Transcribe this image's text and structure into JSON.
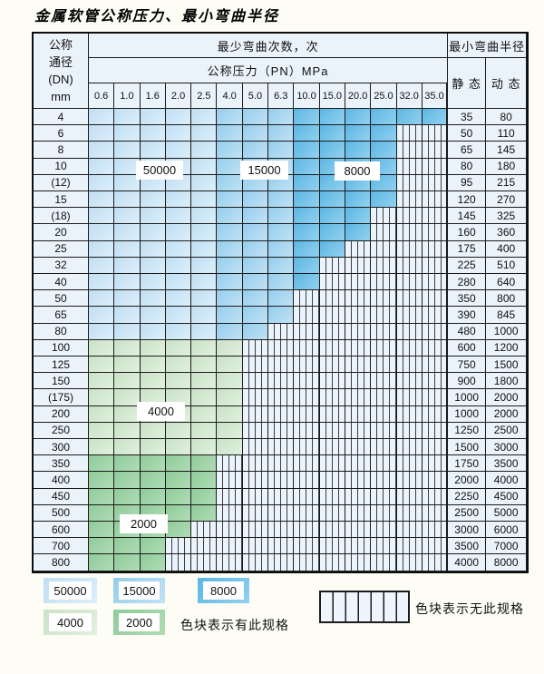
{
  "title": "金属软管公称压力、最小弯曲半径",
  "header": {
    "dn_lines": [
      "公称",
      "通径",
      "(DN)",
      "mm"
    ],
    "cycles_title": "最少弯曲次数，次",
    "pressure_title": "公称压力（PN）MPa",
    "pressures": [
      "0.6",
      "1.0",
      "1.6",
      "2.0",
      "2.5",
      "4.0",
      "5.0",
      "6.3",
      "10.0",
      "15.0",
      "20.0",
      "25.0",
      "32.0",
      "35.0"
    ],
    "radius_title": "最小弯曲半径",
    "static_label": "静 态",
    "dynamic_label": "动 态"
  },
  "region_labels": {
    "l50000": "50000",
    "l15000": "15000",
    "l8000": "8000",
    "l4000": "4000",
    "l2000": "2000"
  },
  "legend": {
    "items": [
      {
        "value": "50000",
        "key": "50000"
      },
      {
        "value": "15000",
        "key": "15000"
      },
      {
        "value": "8000",
        "key": "8000"
      },
      {
        "value": "4000",
        "key": "4000"
      },
      {
        "value": "2000",
        "key": "2000"
      }
    ],
    "has_spec_text": "色块表示有此规格",
    "no_spec_text": "色块表示无此规格"
  },
  "colors": {
    "cycle_fill": {
      "50000": [
        "#bfdff2",
        "#ddeefa"
      ],
      "15000": [
        "#95cdec",
        "#c0e2f5"
      ],
      "8000": [
        "#5cb6e2",
        "#92d1f0"
      ],
      "4000": [
        "#c9e2c6",
        "#e1f0de"
      ],
      "2000": [
        "#8fcb99",
        "#b0dcb6"
      ]
    },
    "hatch_bg": "#ebf3fb",
    "hatch_line": "#3a3f44",
    "label_cell_bg": "#eaf2fa",
    "grid_line": "#1b1b1b"
  },
  "rows": [
    {
      "dn": "4",
      "cells": [
        50000,
        50000,
        50000,
        50000,
        50000,
        15000,
        15000,
        15000,
        8000,
        8000,
        8000,
        8000,
        8000,
        8000
      ],
      "static": "35",
      "dynamic": "80"
    },
    {
      "dn": "6",
      "cells": [
        50000,
        50000,
        50000,
        50000,
        50000,
        15000,
        15000,
        15000,
        8000,
        8000,
        8000,
        8000,
        null,
        null
      ],
      "static": "50",
      "dynamic": "110"
    },
    {
      "dn": "8",
      "cells": [
        50000,
        50000,
        50000,
        50000,
        50000,
        15000,
        15000,
        15000,
        8000,
        8000,
        8000,
        8000,
        null,
        null
      ],
      "static": "65",
      "dynamic": "145"
    },
    {
      "dn": "10",
      "cells": [
        50000,
        50000,
        50000,
        50000,
        50000,
        15000,
        15000,
        15000,
        8000,
        8000,
        8000,
        8000,
        null,
        null
      ],
      "static": "80",
      "dynamic": "180"
    },
    {
      "dn": "(12)",
      "cells": [
        50000,
        50000,
        50000,
        50000,
        50000,
        15000,
        15000,
        15000,
        8000,
        8000,
        8000,
        8000,
        null,
        null
      ],
      "static": "95",
      "dynamic": "215"
    },
    {
      "dn": "15",
      "cells": [
        50000,
        50000,
        50000,
        50000,
        50000,
        15000,
        15000,
        15000,
        8000,
        8000,
        8000,
        8000,
        null,
        null
      ],
      "static": "120",
      "dynamic": "270"
    },
    {
      "dn": "(18)",
      "cells": [
        50000,
        50000,
        50000,
        50000,
        50000,
        15000,
        15000,
        15000,
        8000,
        8000,
        8000,
        null,
        null,
        null
      ],
      "static": "145",
      "dynamic": "325"
    },
    {
      "dn": "20",
      "cells": [
        50000,
        50000,
        50000,
        50000,
        50000,
        15000,
        15000,
        15000,
        8000,
        8000,
        8000,
        null,
        null,
        null
      ],
      "static": "160",
      "dynamic": "360"
    },
    {
      "dn": "25",
      "cells": [
        50000,
        50000,
        50000,
        50000,
        50000,
        15000,
        15000,
        15000,
        8000,
        8000,
        null,
        null,
        null,
        null
      ],
      "static": "175",
      "dynamic": "400"
    },
    {
      "dn": "32",
      "cells": [
        50000,
        50000,
        50000,
        50000,
        50000,
        15000,
        15000,
        15000,
        8000,
        null,
        null,
        null,
        null,
        null
      ],
      "static": "225",
      "dynamic": "510"
    },
    {
      "dn": "40",
      "cells": [
        50000,
        50000,
        50000,
        50000,
        50000,
        15000,
        15000,
        15000,
        8000,
        null,
        null,
        null,
        null,
        null
      ],
      "static": "280",
      "dynamic": "640"
    },
    {
      "dn": "50",
      "cells": [
        50000,
        50000,
        50000,
        50000,
        50000,
        15000,
        15000,
        15000,
        null,
        null,
        null,
        null,
        null,
        null
      ],
      "static": "350",
      "dynamic": "800"
    },
    {
      "dn": "65",
      "cells": [
        50000,
        50000,
        50000,
        50000,
        50000,
        15000,
        15000,
        15000,
        null,
        null,
        null,
        null,
        null,
        null
      ],
      "static": "390",
      "dynamic": "845"
    },
    {
      "dn": "80",
      "cells": [
        50000,
        50000,
        50000,
        50000,
        50000,
        15000,
        15000,
        null,
        null,
        null,
        null,
        null,
        null,
        null
      ],
      "static": "480",
      "dynamic": "1000"
    },
    {
      "dn": "100",
      "cells": [
        4000,
        4000,
        4000,
        4000,
        4000,
        4000,
        null,
        null,
        null,
        null,
        null,
        null,
        null,
        null
      ],
      "static": "600",
      "dynamic": "1200"
    },
    {
      "dn": "125",
      "cells": [
        4000,
        4000,
        4000,
        4000,
        4000,
        4000,
        null,
        null,
        null,
        null,
        null,
        null,
        null,
        null
      ],
      "static": "750",
      "dynamic": "1500"
    },
    {
      "dn": "150",
      "cells": [
        4000,
        4000,
        4000,
        4000,
        4000,
        4000,
        null,
        null,
        null,
        null,
        null,
        null,
        null,
        null
      ],
      "static": "900",
      "dynamic": "1800"
    },
    {
      "dn": "(175)",
      "cells": [
        4000,
        4000,
        4000,
        4000,
        4000,
        4000,
        null,
        null,
        null,
        null,
        null,
        null,
        null,
        null
      ],
      "static": "1000",
      "dynamic": "2000"
    },
    {
      "dn": "200",
      "cells": [
        4000,
        4000,
        4000,
        4000,
        4000,
        4000,
        null,
        null,
        null,
        null,
        null,
        null,
        null,
        null
      ],
      "static": "1000",
      "dynamic": "2000"
    },
    {
      "dn": "250",
      "cells": [
        4000,
        4000,
        4000,
        4000,
        4000,
        4000,
        null,
        null,
        null,
        null,
        null,
        null,
        null,
        null
      ],
      "static": "1250",
      "dynamic": "2500"
    },
    {
      "dn": "300",
      "cells": [
        4000,
        4000,
        4000,
        4000,
        4000,
        4000,
        null,
        null,
        null,
        null,
        null,
        null,
        null,
        null
      ],
      "static": "1500",
      "dynamic": "3000"
    },
    {
      "dn": "350",
      "cells": [
        2000,
        2000,
        2000,
        2000,
        2000,
        null,
        null,
        null,
        null,
        null,
        null,
        null,
        null,
        null
      ],
      "static": "1750",
      "dynamic": "3500"
    },
    {
      "dn": "400",
      "cells": [
        2000,
        2000,
        2000,
        2000,
        2000,
        null,
        null,
        null,
        null,
        null,
        null,
        null,
        null,
        null
      ],
      "static": "2000",
      "dynamic": "4000"
    },
    {
      "dn": "450",
      "cells": [
        2000,
        2000,
        2000,
        2000,
        2000,
        null,
        null,
        null,
        null,
        null,
        null,
        null,
        null,
        null
      ],
      "static": "2250",
      "dynamic": "4500"
    },
    {
      "dn": "500",
      "cells": [
        2000,
        2000,
        2000,
        2000,
        2000,
        null,
        null,
        null,
        null,
        null,
        null,
        null,
        null,
        null
      ],
      "static": "2500",
      "dynamic": "5000"
    },
    {
      "dn": "600",
      "cells": [
        2000,
        2000,
        2000,
        2000,
        null,
        null,
        null,
        null,
        null,
        null,
        null,
        null,
        null,
        null
      ],
      "static": "3000",
      "dynamic": "6000"
    },
    {
      "dn": "700",
      "cells": [
        2000,
        2000,
        2000,
        null,
        null,
        null,
        null,
        null,
        null,
        null,
        null,
        null,
        null,
        null
      ],
      "static": "3500",
      "dynamic": "7000"
    },
    {
      "dn": "800",
      "cells": [
        2000,
        2000,
        2000,
        null,
        null,
        null,
        null,
        null,
        null,
        null,
        null,
        null,
        null,
        null
      ],
      "static": "4000",
      "dynamic": "8000"
    }
  ]
}
